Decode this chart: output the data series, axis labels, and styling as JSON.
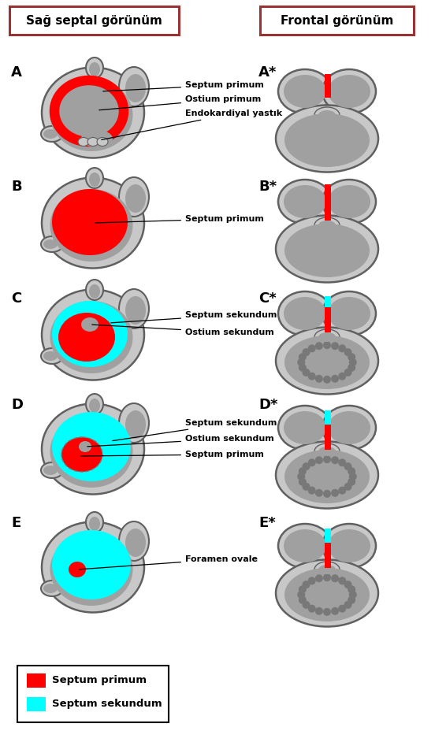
{
  "title_left": "Sağ septal görünüm",
  "title_right": "Frontal görünüm",
  "labels_A": [
    "Septum primum",
    "Ostium primum",
    "Endokardiyal yastık"
  ],
  "label_B": "Septum primum",
  "labels_C": [
    "Septum sekundum",
    "Ostium sekundum"
  ],
  "labels_D": [
    "Septum sekundum",
    "Ostium sekundum",
    "Septum primum"
  ],
  "label_E": "Foramen ovale",
  "legend": [
    "Septum primum",
    "Septum sekundum"
  ],
  "color_primum": "#FF0000",
  "color_sekundum": "#00FFFF",
  "bg_color": "#FFFFFF",
  "box_color": "#993333",
  "row_labels": [
    "A",
    "B",
    "C",
    "D",
    "E"
  ],
  "row_label_star": [
    "A*",
    "B*",
    "C*",
    "D*",
    "E*"
  ],
  "gray_light": "#C8C8C8",
  "gray_mid": "#A0A0A0",
  "gray_dark": "#787878",
  "gray_edge": "#606060"
}
